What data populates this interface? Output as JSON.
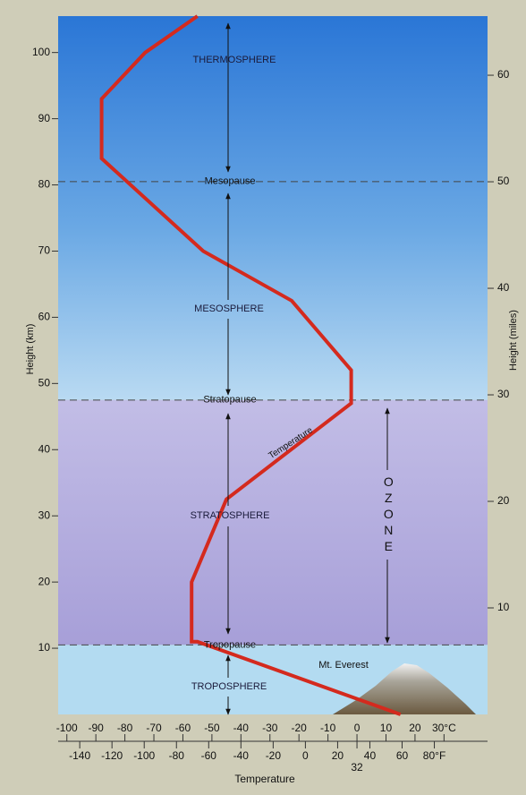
{
  "chart_data": {
    "type": "line",
    "x_label": "Temperature",
    "y_label": "Height (km)",
    "y2_label": "Height (miles)",
    "series": [
      {
        "name": "Temperature",
        "color": "#d42a1e",
        "x": [
          15,
          -55,
          -57,
          -57,
          -45,
          -2,
          -2,
          -22.5,
          -53,
          -88,
          -88,
          -73,
          -55
        ],
        "values": [
          0,
          11,
          11,
          20,
          32.5,
          47,
          52,
          62.5,
          70,
          84,
          93,
          100,
          105.5
        ]
      }
    ],
    "xlim": [
      -103,
      45
    ],
    "xticks": [
      -100,
      -90,
      -80,
      -70,
      -60,
      -50,
      -40,
      -30,
      -20,
      -10,
      0,
      10,
      20,
      {
        "value": 30,
        "label": "30°C"
      }
    ],
    "x2lim": [
      -153.4,
      113
    ],
    "x2ticks": [
      -140,
      -120,
      -100,
      -80,
      -60,
      -40,
      -20,
      0,
      20,
      32,
      40,
      60,
      {
        "value": 80,
        "label": "80°F"
      }
    ],
    "ylim": [
      0,
      105.5
    ],
    "yticks": [
      10,
      20,
      30,
      40,
      50,
      60,
      70,
      80,
      90,
      100
    ],
    "y2lim": [
      0,
      65.55
    ],
    "y2ticks": [
      10,
      20,
      30,
      40,
      50,
      60
    ],
    "layers": [
      "THERMOSPHERE",
      "MESOSPHERE",
      "STRATOSPHERE",
      "TROPOSPHERE"
    ],
    "boundaries": [
      {
        "label": "Mesopause",
        "height": 80.5
      },
      {
        "label": "Stratopause",
        "height": 47.5
      },
      {
        "label": "Tropopause",
        "height": 10.5
      }
    ],
    "annotations": [
      "OZONE",
      "Mt. Everest"
    ]
  }
}
